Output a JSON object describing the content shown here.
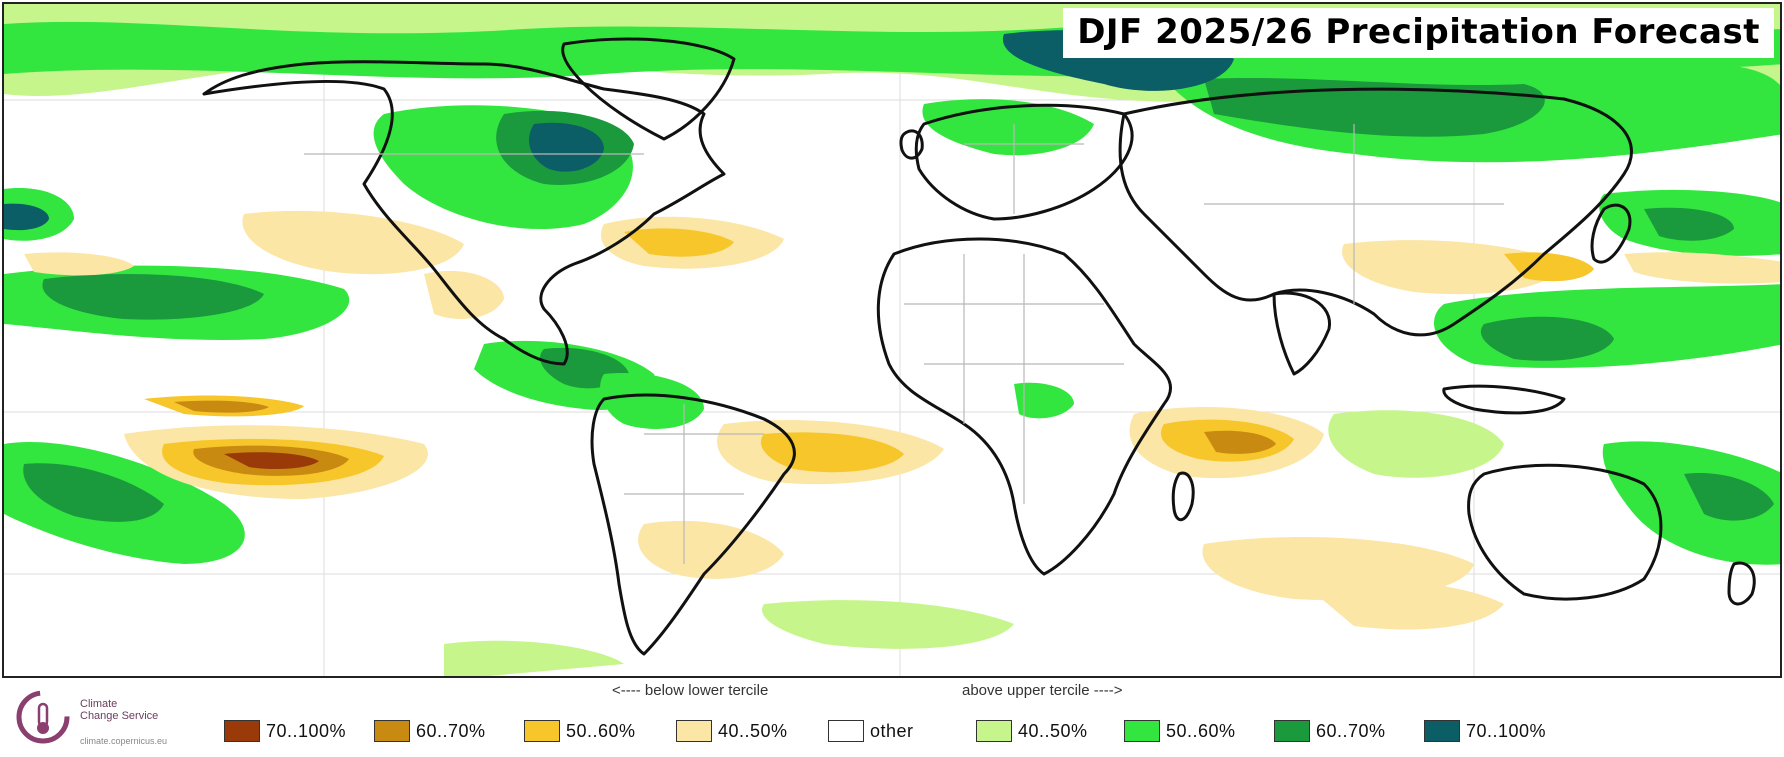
{
  "title": "DJF 2025/26 Precipitation Forecast",
  "logo": {
    "name": "Climate\nChange Service",
    "url": "climate.copernicus.eu"
  },
  "legend": {
    "below_label": "<---- below lower tercile",
    "above_label": "above upper tercile ---->",
    "items": [
      {
        "label": "70..100%",
        "color": "#9a3a08"
      },
      {
        "label": "60..70%",
        "color": "#c98a12"
      },
      {
        "label": "50..60%",
        "color": "#f7c62a"
      },
      {
        "label": "40..50%",
        "color": "#fbe6a6"
      },
      {
        "label": "other",
        "color": "#ffffff"
      },
      {
        "label": "40..50%",
        "color": "#c6f58c"
      },
      {
        "label": "50..60%",
        "color": "#33e63f"
      },
      {
        "label": "60..70%",
        "color": "#1a9a3c"
      },
      {
        "label": "70..100%",
        "color": "#0c5e66"
      }
    ]
  },
  "colors": {
    "below_70_100": "#9a3a08",
    "below_60_70": "#c98a12",
    "below_50_60": "#f7c62a",
    "below_40_50": "#fbe6a6",
    "above_40_50": "#c6f58c",
    "above_50_60": "#33e63f",
    "above_60_70": "#1a9a3c",
    "above_70_100": "#0c5e66",
    "coastline": "#111111",
    "borders": "#b8b8b8"
  }
}
